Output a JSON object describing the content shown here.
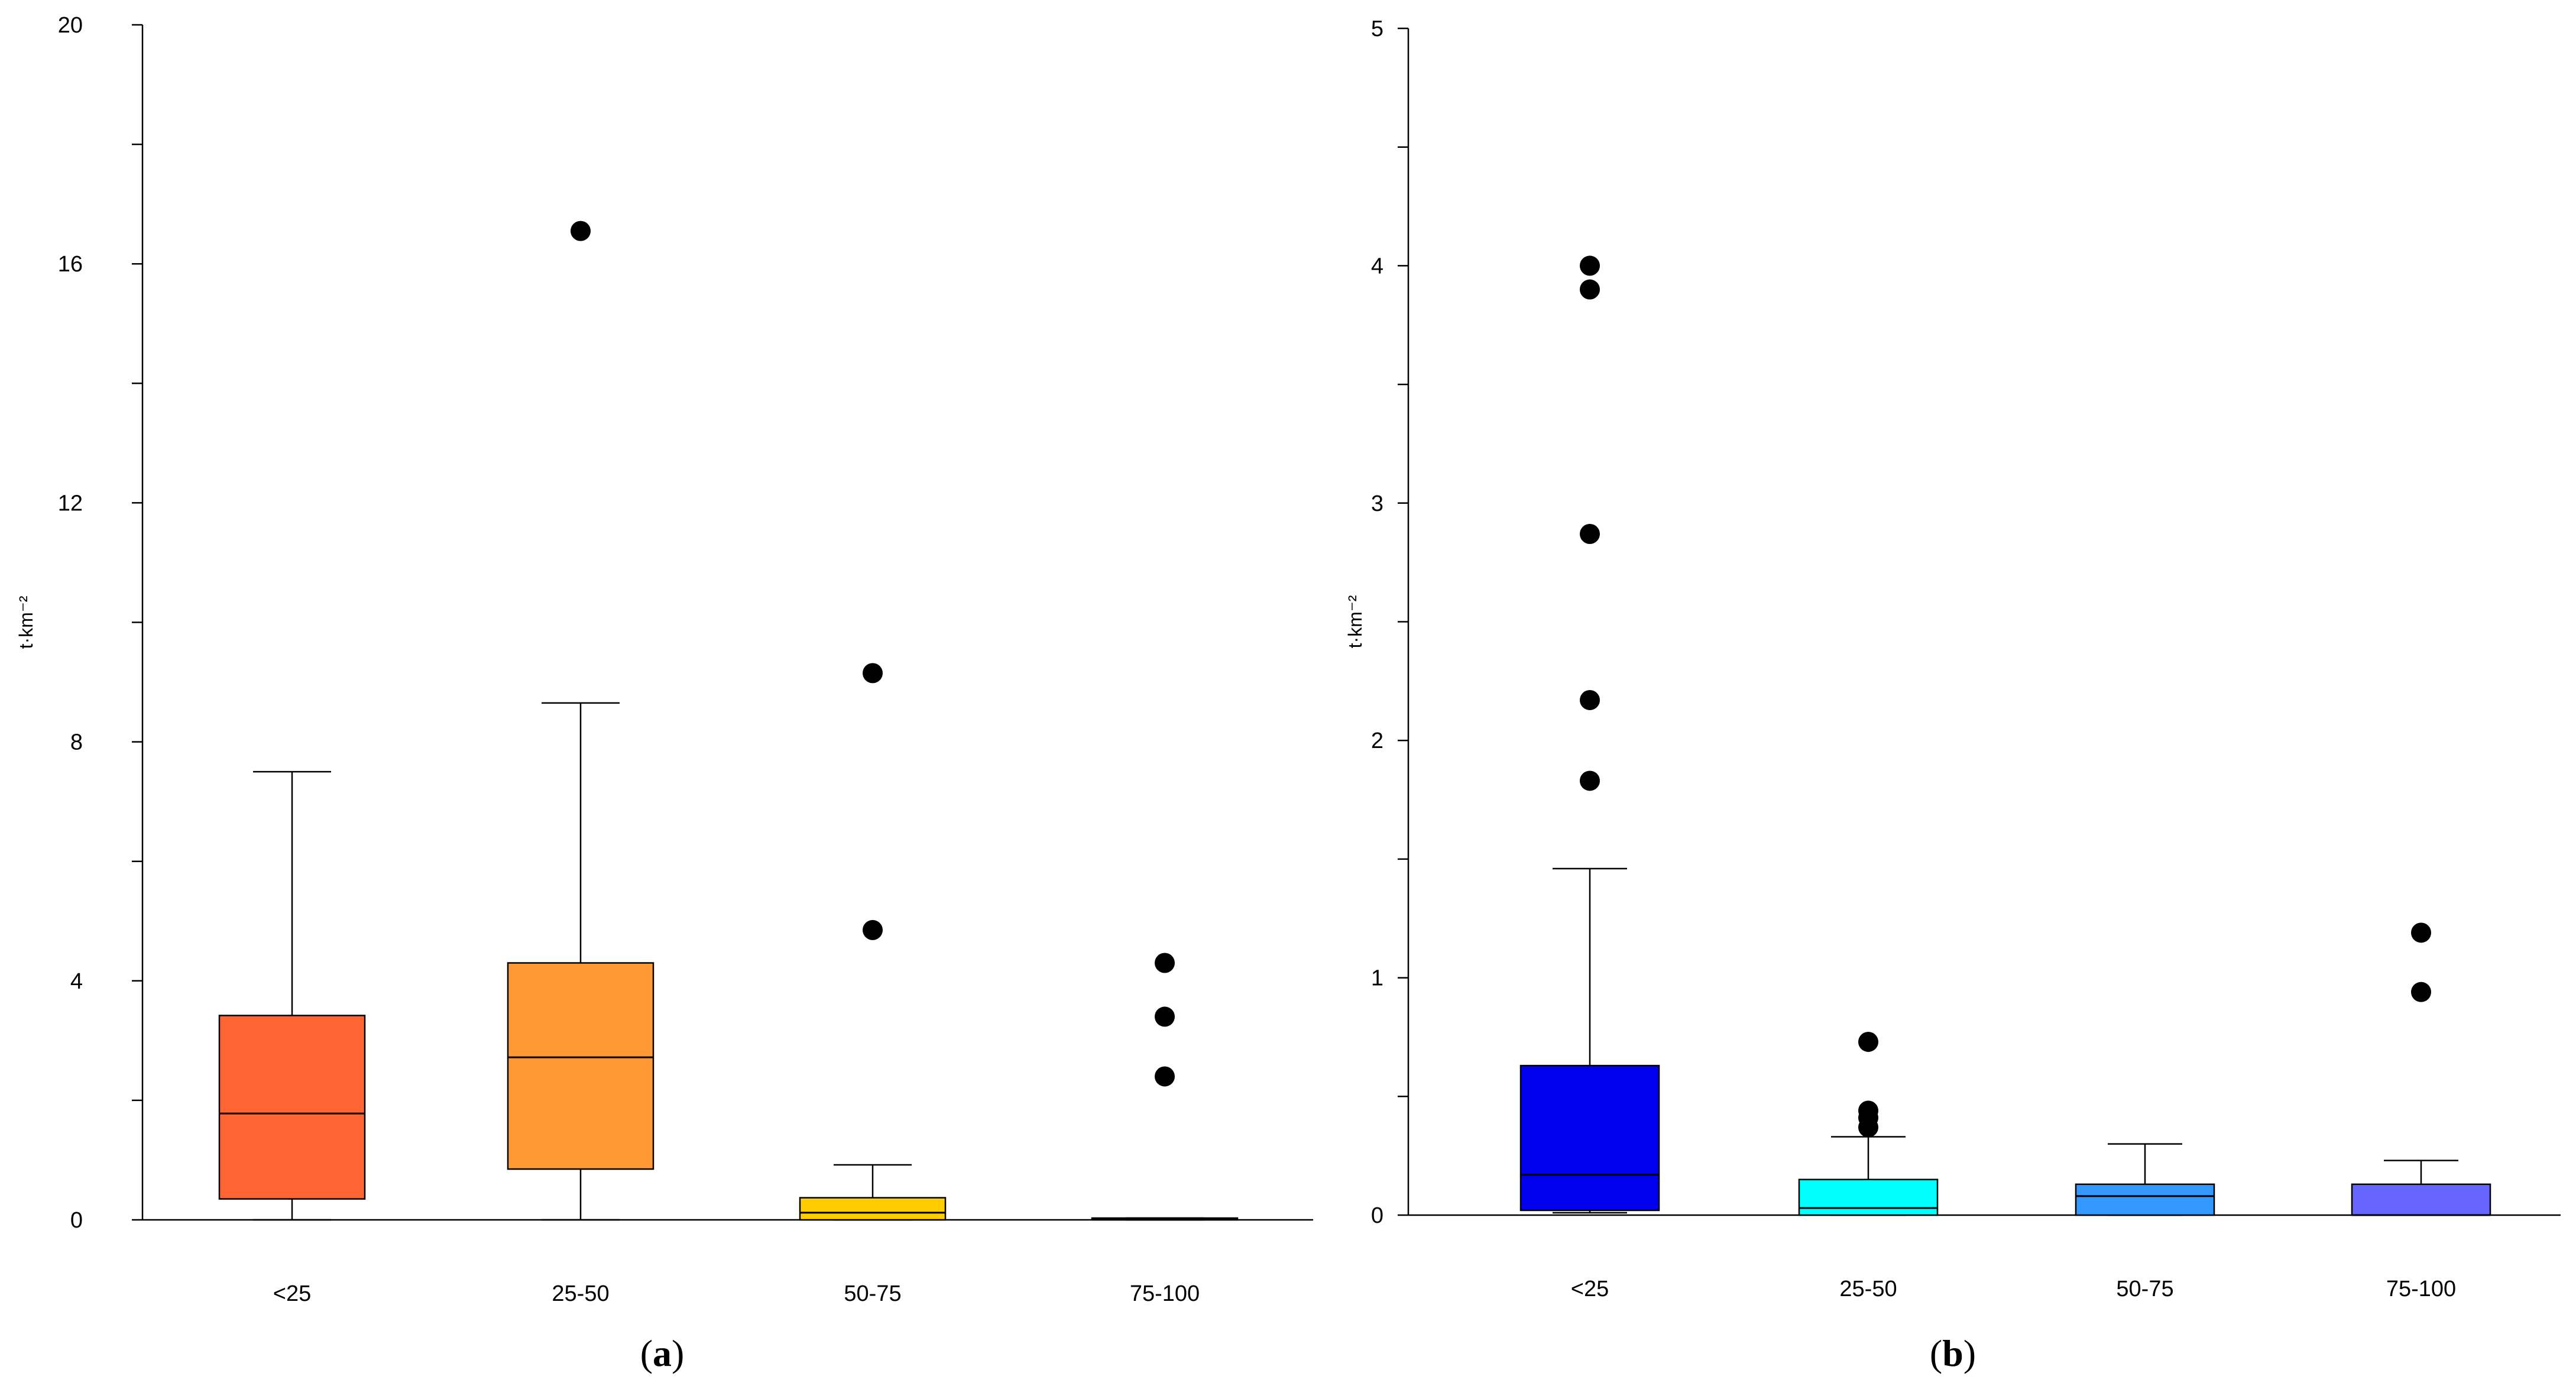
{
  "chart_data": [
    {
      "type": "box",
      "panel_label": "a",
      "ylabel": "t·km⁻²",
      "ylim": [
        0,
        20
      ],
      "yticks_labeled": [
        0,
        4,
        8,
        12,
        16,
        20
      ],
      "yticks_minor": [
        2,
        6,
        10,
        14,
        18
      ],
      "categories": [
        "<25",
        "25-50",
        "50-75",
        "75-100"
      ],
      "boxes": [
        {
          "category": "<25",
          "color": "#FF6633",
          "whisker_low": 0.0,
          "q1": 0.35,
          "median": 1.78,
          "q3": 3.42,
          "whisker_high": 7.5,
          "outliers": []
        },
        {
          "category": "25-50",
          "color": "#FF9933",
          "whisker_low": 0.0,
          "q1": 0.85,
          "median": 2.72,
          "q3": 4.3,
          "whisker_high": 8.65,
          "outliers": [
            16.55
          ]
        },
        {
          "category": "50-75",
          "color": "#FFCC00",
          "whisker_low": 0.0,
          "q1": 0.0,
          "median": 0.12,
          "q3": 0.37,
          "whisker_high": 0.92,
          "outliers": [
            9.15,
            4.85
          ]
        },
        {
          "category": "75-100",
          "color": "#FFCC00",
          "whisker_low": 0.0,
          "q1": 0.0,
          "median": 0.02,
          "q3": 0.03,
          "whisker_high": 0.03,
          "outliers": [
            4.3,
            3.4,
            2.4
          ]
        }
      ]
    },
    {
      "type": "box",
      "panel_label": "b",
      "ylabel": "t·km⁻²",
      "ylim": [
        0,
        5
      ],
      "yticks_labeled": [
        0,
        1,
        2,
        3,
        4,
        5
      ],
      "yticks_minor": [
        0.5,
        1.5,
        2.5,
        3.5,
        4.5
      ],
      "categories": [
        "<25",
        "25-50",
        "50-75",
        "75-100"
      ],
      "boxes": [
        {
          "category": "<25",
          "color": "#0000EE",
          "whisker_low": 0.01,
          "q1": 0.02,
          "median": 0.17,
          "q3": 0.63,
          "whisker_high": 1.46,
          "outliers": [
            4.0,
            3.9,
            2.87,
            2.17,
            1.83
          ]
        },
        {
          "category": "25-50",
          "color": "#00FFFF",
          "whisker_low": 0.0,
          "q1": 0.0,
          "median": 0.03,
          "q3": 0.15,
          "whisker_high": 0.33,
          "outliers": [
            0.73,
            0.44,
            0.41,
            0.37
          ]
        },
        {
          "category": "50-75",
          "color": "#3399FF",
          "whisker_low": 0.0,
          "q1": 0.0,
          "median": 0.08,
          "q3": 0.13,
          "whisker_high": 0.3,
          "outliers": []
        },
        {
          "category": "75-100",
          "color": "#6666FF",
          "whisker_low": 0.0,
          "q1": 0.0,
          "median": 0.0,
          "q3": 0.13,
          "whisker_high": 0.23,
          "outliers": [
            1.19,
            0.94
          ]
        }
      ]
    }
  ]
}
